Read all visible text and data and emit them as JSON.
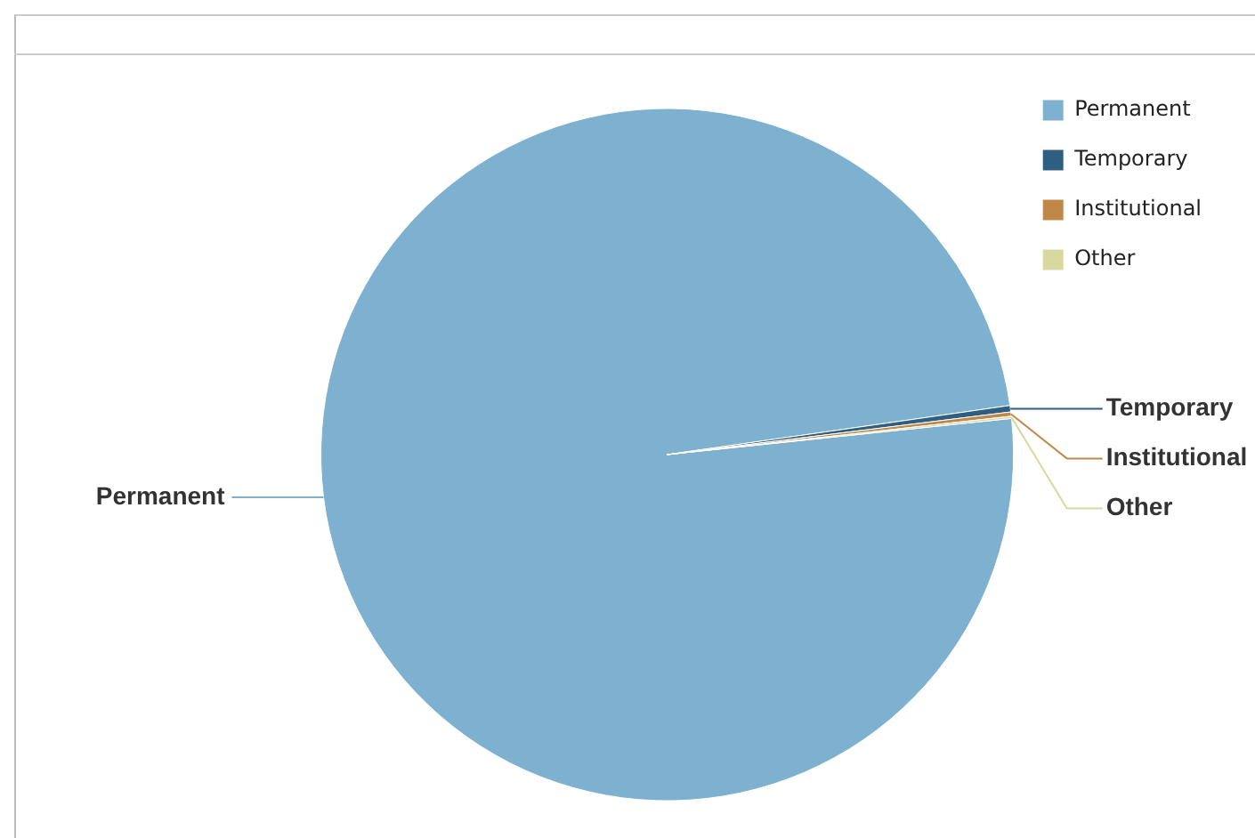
{
  "chart_data": {
    "type": "pie",
    "categories": [
      "Permanent",
      "Temporary",
      "Institutional",
      "Other"
    ],
    "values": [
      99.4,
      0.3,
      0.2,
      0.1
    ],
    "colors": [
      "#7eb0d0",
      "#2e5f80",
      "#c08848",
      "#d8d9a0"
    ],
    "legend": "top right"
  }
}
